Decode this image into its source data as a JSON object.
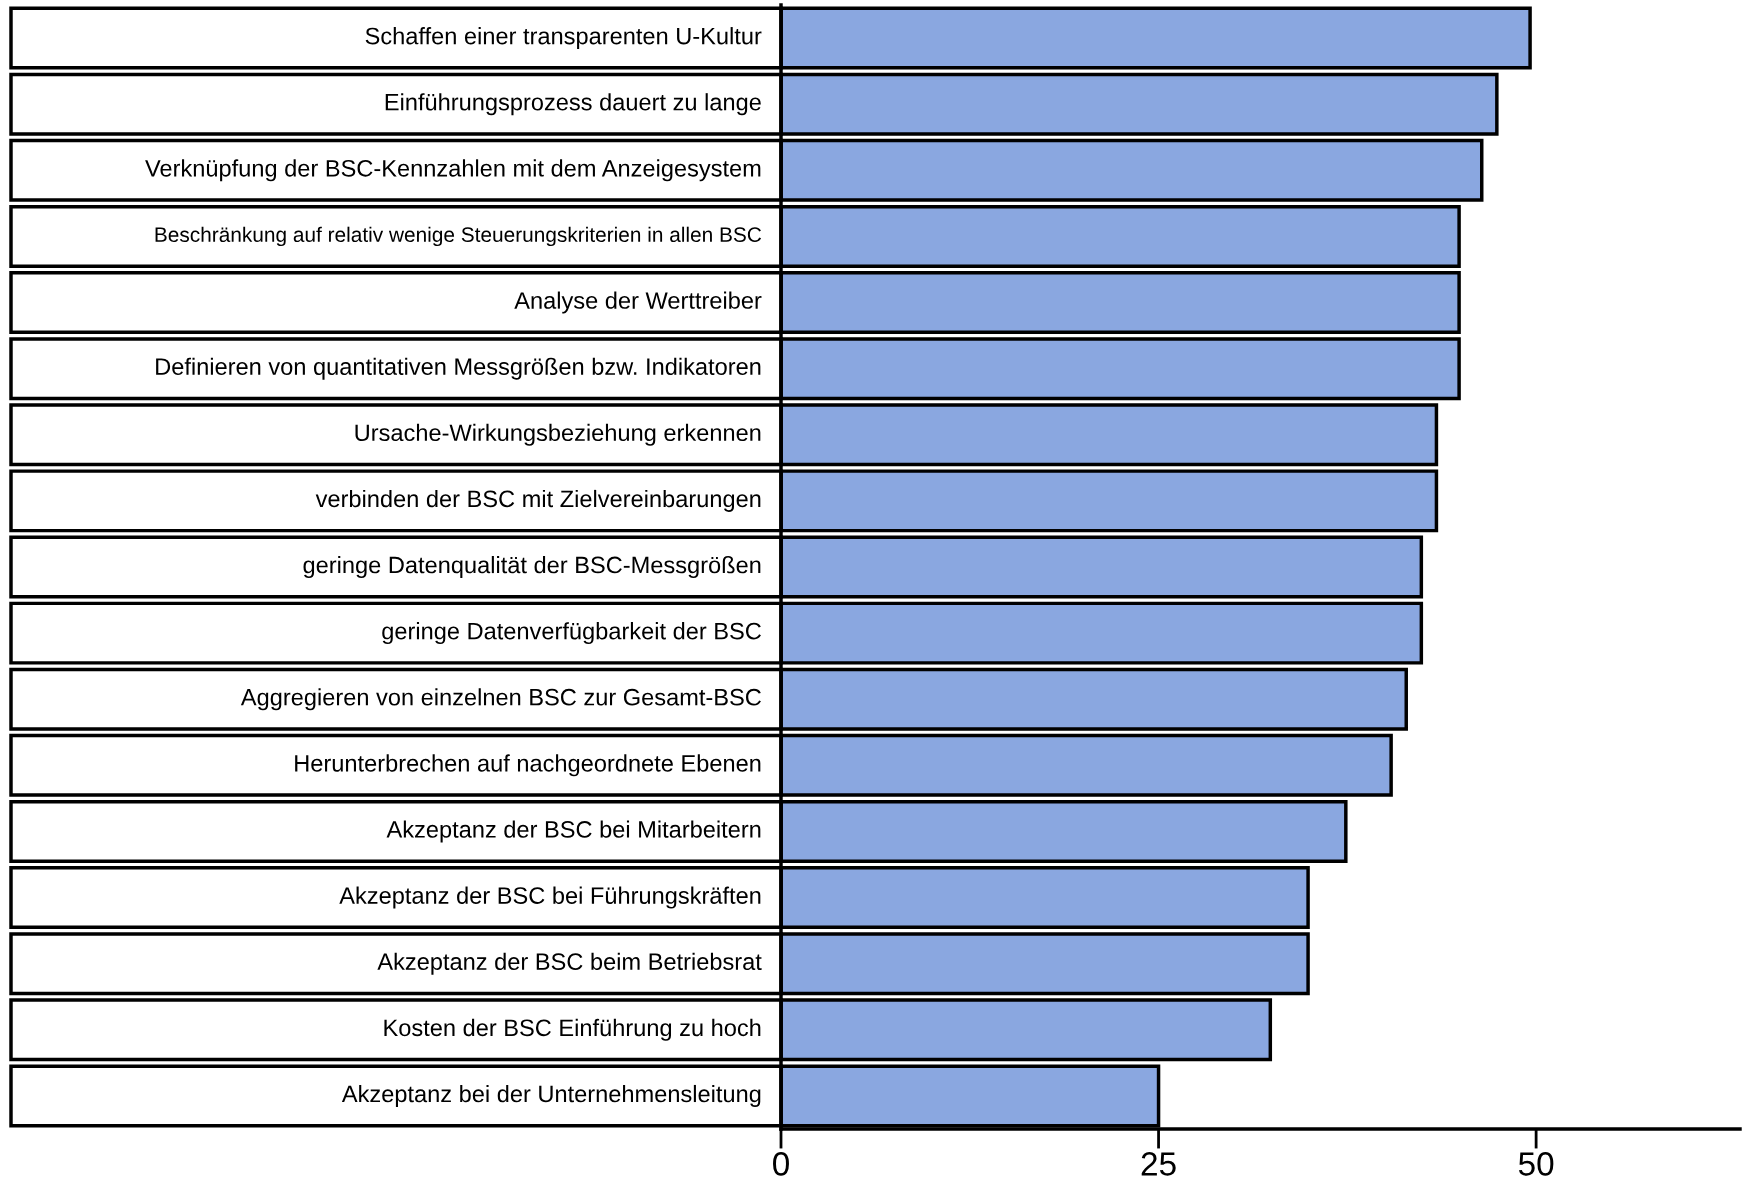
{
  "chart_data": {
    "type": "bar",
    "orientation": "horizontal",
    "categories": [
      "Schaffen einer transparenten U-Kultur",
      "Einführungsprozess dauert zu lange",
      "Verknüpfung der BSC-Kennzahlen mit dem Anzeigesystem",
      "Beschränkung auf relativ wenige Steuerungskriterien in allen BSC",
      "Analyse der Werttreiber",
      "Definieren von quantitativen Messgrößen bzw. Indikatoren",
      "Ursache-Wirkungsbeziehung erkennen",
      "verbinden der BSC mit Zielvereinbarungen",
      "geringe Datenqualität der BSC-Messgrößen",
      "geringe Datenverfügbarkeit der BSC",
      "Aggregieren von einzelnen BSC zur Gesamt-BSC",
      "Herunterbrechen auf nachgeordnete Ebenen",
      "Akzeptanz der BSC bei Mitarbeitern",
      "Akzeptanz der BSC bei Führungskräften",
      "Akzeptanz der BSC beim Betriebsrat",
      "Kosten der BSC Einführung zu hoch",
      "Akzeptanz bei der Unternehmensleitung"
    ],
    "values": [
      49.6,
      47.4,
      46.4,
      44.9,
      44.9,
      44.9,
      43.4,
      43.4,
      42.4,
      42.4,
      41.4,
      40.4,
      37.4,
      34.9,
      34.9,
      32.4,
      25.0
    ],
    "color": "#8aa7e0",
    "xlim": [
      0,
      63.5
    ],
    "xticks": [
      0,
      25,
      50
    ],
    "grid": false,
    "legend": false
  }
}
